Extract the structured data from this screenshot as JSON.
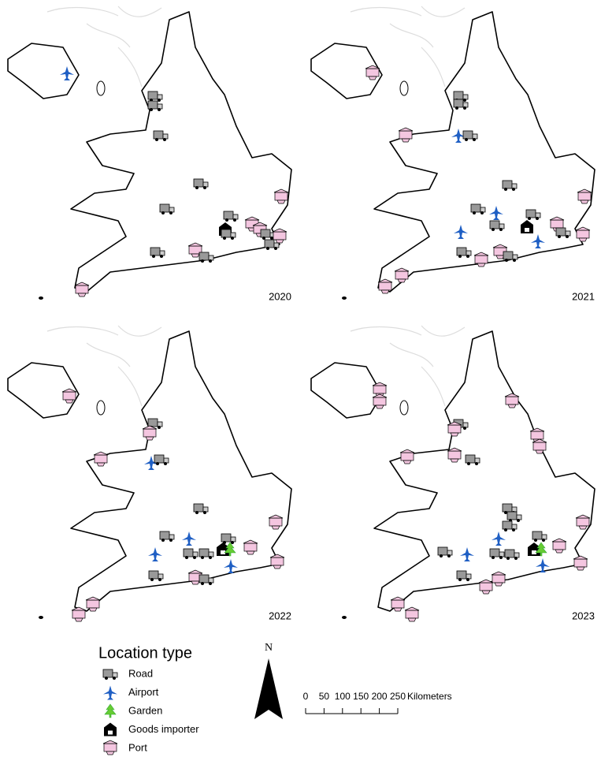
{
  "panels": [
    {
      "year": "2020"
    },
    {
      "year": "2021"
    },
    {
      "year": "2022"
    },
    {
      "year": "2023"
    }
  ],
  "legend": {
    "title": "Location type",
    "items": [
      "Road",
      "Airport",
      "Garden",
      "Goods importer",
      "Port"
    ]
  },
  "north": "N",
  "scale_bar": {
    "ticks": [
      0,
      50,
      100,
      150,
      200,
      250
    ],
    "unit": "Kilometers"
  }
}
